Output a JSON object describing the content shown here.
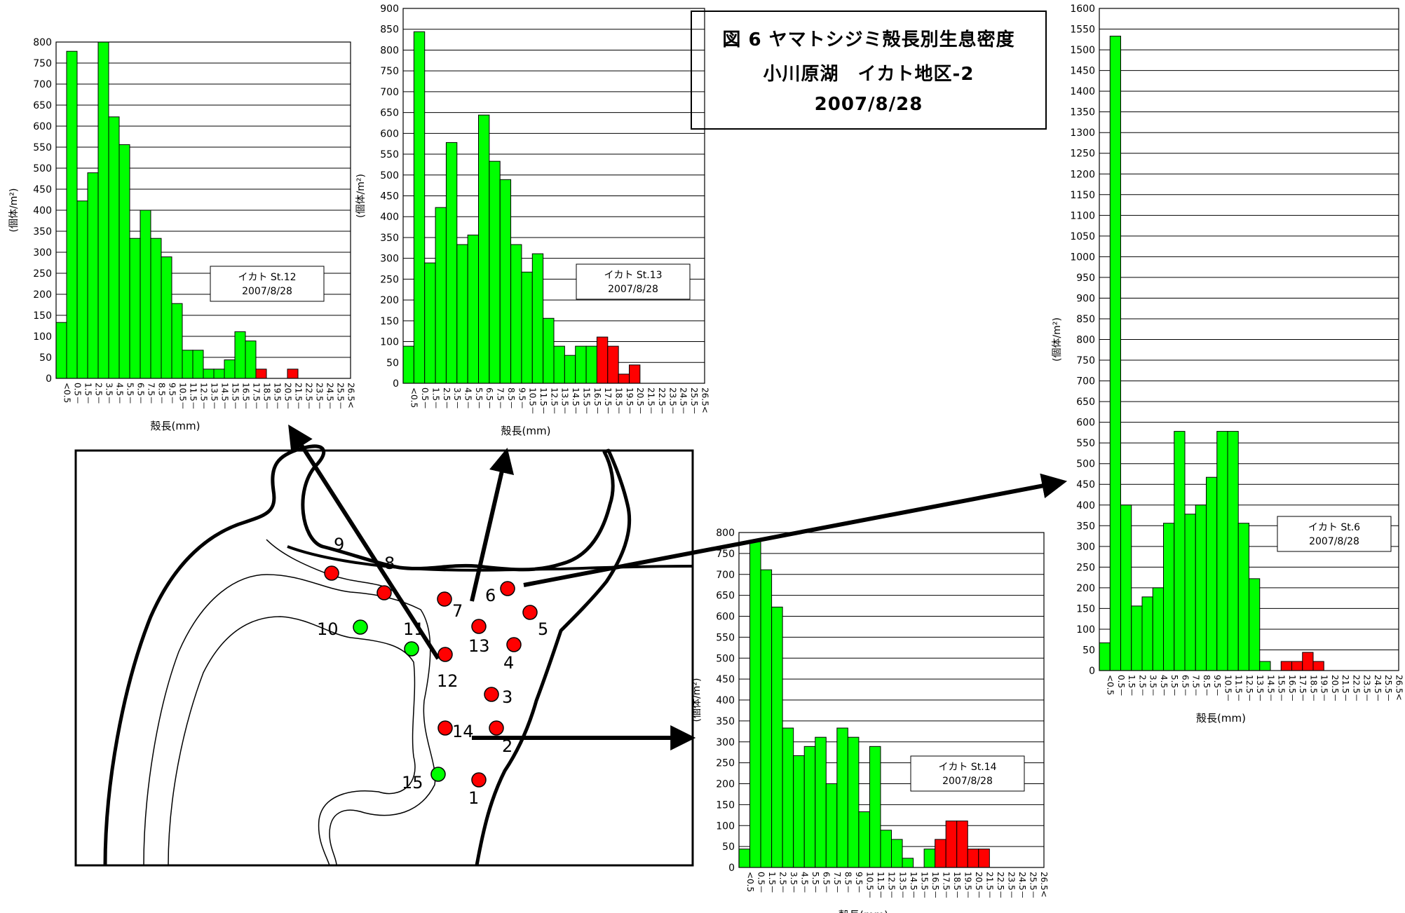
{
  "figure": {
    "title_line1": "図 6 ヤマトシジミ殻長別生息密度",
    "title_line2": "小川原湖　イカト地区-2",
    "title_line3": "2007/8/28"
  },
  "colors": {
    "green": "#00ff00",
    "red": "#ff0000",
    "bar_stroke": "#000000",
    "grid": "#000000"
  },
  "common": {
    "ylabel": "(個体/m²)",
    "xlabel": "殻長(mm)",
    "categories": [
      "<0.5",
      "0.5-",
      "1.5-",
      "2.5-",
      "3.5-",
      "4.5-",
      "5.5-",
      "6.5-",
      "7.5-",
      "8.5-",
      "9.5-",
      "10.5-",
      "11.5-",
      "12.5-",
      "13.5-",
      "14.5-",
      "15.5-",
      "16.5-",
      "17.5-",
      "18.5-",
      "19.5-",
      "20.5-",
      "21.5-",
      "22.5-",
      "23.5-",
      "24.5-",
      "25.5-",
      "26.5<"
    ],
    "tick_labels": [
      "<0.5",
      "0.5－",
      "1.5－",
      "2.5－",
      "3.5－",
      "4.5－",
      "5.5－",
      "6.5－",
      "7.5－",
      "8.5－",
      "9.5－",
      "10.5－",
      "11.5－",
      "12.5－",
      "13.5－",
      "14.5－",
      "15.5－",
      "16.5－",
      "17.5－",
      "18.5－",
      "19.5－",
      "20.5－",
      "21.5－",
      "22.5－",
      "23.5－",
      "24.5－",
      "25.5－",
      "26.5<"
    ]
  },
  "chart_data": [
    {
      "type": "bar",
      "station": "イカト St.12",
      "date": "2007/8/28",
      "ylim": [
        0,
        800
      ],
      "ystep": 50,
      "categories": [
        "<0.5",
        "0.5-",
        "1.5-",
        "2.5-",
        "3.5-",
        "4.5-",
        "5.5-",
        "6.5-",
        "7.5-",
        "8.5-",
        "9.5-",
        "10.5-",
        "11.5-",
        "12.5-",
        "13.5-",
        "14.5-",
        "15.5-",
        "16.5-",
        "17.5-",
        "18.5-",
        "19.5-",
        "20.5-",
        "21.5-",
        "22.5-",
        "23.5-",
        "24.5-",
        "25.5-",
        "26.5<"
      ],
      "values": [
        133,
        778,
        422,
        489,
        808,
        622,
        556,
        333,
        400,
        333,
        289,
        178,
        67,
        67,
        22,
        22,
        44,
        111,
        89,
        22,
        0,
        0,
        22,
        0,
        0,
        0,
        0,
        0
      ],
      "red_from_index": 19
    },
    {
      "type": "bar",
      "station": "イカト St.13",
      "date": "2007/8/28",
      "ylim": [
        0,
        900
      ],
      "ystep": 50,
      "categories": [
        "<0.5",
        "0.5-",
        "1.5-",
        "2.5-",
        "3.5-",
        "4.5-",
        "5.5-",
        "6.5-",
        "7.5-",
        "8.5-",
        "9.5-",
        "10.5-",
        "11.5-",
        "12.5-",
        "13.5-",
        "14.5-",
        "15.5-",
        "16.5-",
        "17.5-",
        "18.5-",
        "19.5-",
        "20.5-",
        "21.5-",
        "22.5-",
        "23.5-",
        "24.5-",
        "25.5-",
        "26.5<"
      ],
      "values": [
        89,
        844,
        289,
        422,
        578,
        333,
        356,
        644,
        533,
        489,
        333,
        267,
        311,
        156,
        89,
        67,
        89,
        89,
        111,
        89,
        22,
        44,
        0,
        0,
        0,
        0,
        0,
        0
      ],
      "red_from_index": 18
    },
    {
      "type": "bar",
      "station": "イカト St.6",
      "date": "2007/8/28",
      "ylim": [
        0,
        1600
      ],
      "ystep": 50,
      "categories": [
        "<0.5",
        "0.5-",
        "1.5-",
        "2.5-",
        "3.5-",
        "4.5-",
        "5.5-",
        "6.5-",
        "7.5-",
        "8.5-",
        "9.5-",
        "10.5-",
        "11.5-",
        "12.5-",
        "13.5-",
        "14.5-",
        "15.5-",
        "16.5-",
        "17.5-",
        "18.5-",
        "19.5-",
        "20.5-",
        "21.5-",
        "22.5-",
        "23.5-",
        "24.5-",
        "25.5-",
        "26.5<"
      ],
      "values": [
        67,
        1533,
        400,
        156,
        178,
        200,
        356,
        578,
        378,
        400,
        467,
        578,
        578,
        356,
        222,
        22,
        0,
        22,
        22,
        44,
        22,
        0,
        0,
        0,
        0,
        0,
        0,
        0
      ],
      "red_from_index": 16
    },
    {
      "type": "bar",
      "station": "イカト St.14",
      "date": "2007/8/28",
      "ylim": [
        0,
        800
      ],
      "ystep": 50,
      "categories": [
        "<0.5",
        "0.5-",
        "1.5-",
        "2.5-",
        "3.5-",
        "4.5-",
        "5.5-",
        "6.5-",
        "7.5-",
        "8.5-",
        "9.5-",
        "10.5-",
        "11.5-",
        "12.5-",
        "13.5-",
        "14.5-",
        "15.5-",
        "16.5-",
        "17.5-",
        "18.5-",
        "19.5-",
        "20.5-",
        "21.5-",
        "22.5-",
        "23.5-",
        "24.5-",
        "25.5-",
        "26.5<"
      ],
      "values": [
        44,
        778,
        711,
        622,
        333,
        267,
        289,
        311,
        200,
        333,
        311,
        133,
        289,
        89,
        67,
        22,
        0,
        44,
        67,
        111,
        111,
        44,
        44,
        0,
        0,
        0,
        0,
        0
      ],
      "red_from_index": 18
    }
  ],
  "map": {
    "stations": [
      {
        "label": "1",
        "color": "red"
      },
      {
        "label": "2",
        "color": "red"
      },
      {
        "label": "3",
        "color": "red"
      },
      {
        "label": "4",
        "color": "red"
      },
      {
        "label": "5",
        "color": "red"
      },
      {
        "label": "6",
        "color": "red"
      },
      {
        "label": "7",
        "color": "red"
      },
      {
        "label": "8",
        "color": "red"
      },
      {
        "label": "9",
        "color": "red"
      },
      {
        "label": "10",
        "color": "green"
      },
      {
        "label": "11",
        "color": "green"
      },
      {
        "label": "12",
        "color": "red"
      },
      {
        "label": "13",
        "color": "red"
      },
      {
        "label": "14",
        "color": "red"
      },
      {
        "label": "15",
        "color": "green"
      }
    ]
  }
}
